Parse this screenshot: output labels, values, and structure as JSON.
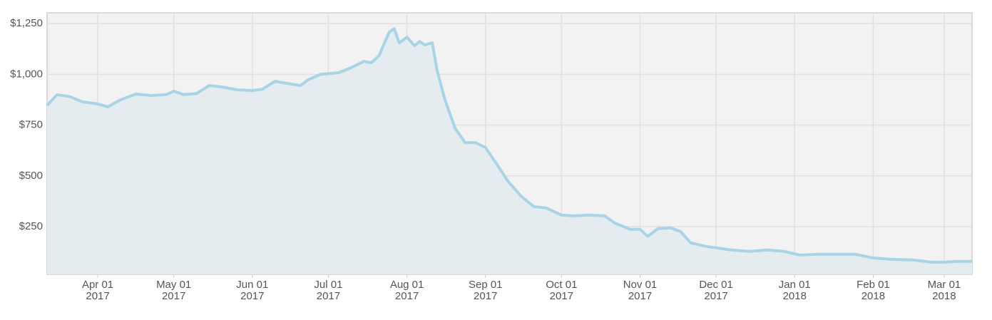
{
  "chart_data": {
    "type": "area",
    "color": "#a8d4e6",
    "fill": "#e4ecf0",
    "grid": true,
    "x": [
      "2017-03-12",
      "2017-03-16",
      "2017-03-21",
      "2017-03-26",
      "2017-04-01",
      "2017-04-05",
      "2017-04-10",
      "2017-04-16",
      "2017-04-22",
      "2017-04-28",
      "2017-05-01",
      "2017-05-05",
      "2017-05-10",
      "2017-05-15",
      "2017-05-20",
      "2017-05-26",
      "2017-06-01",
      "2017-06-05",
      "2017-06-10",
      "2017-06-15",
      "2017-06-20",
      "2017-06-23",
      "2017-06-28",
      "2017-07-05",
      "2017-07-10",
      "2017-07-15",
      "2017-07-18",
      "2017-07-21",
      "2017-07-25",
      "2017-07-27",
      "2017-07-29",
      "2017-08-01",
      "2017-08-04",
      "2017-08-06",
      "2017-08-08",
      "2017-08-11",
      "2017-08-13",
      "2017-08-16",
      "2017-08-20",
      "2017-08-24",
      "2017-08-28",
      "2017-09-01",
      "2017-09-05",
      "2017-09-10",
      "2017-09-15",
      "2017-09-20",
      "2017-09-25",
      "2017-10-01",
      "2017-10-06",
      "2017-10-12",
      "2017-10-18",
      "2017-10-22",
      "2017-10-28",
      "2017-11-01",
      "2017-11-04",
      "2017-11-08",
      "2017-11-13",
      "2017-11-17",
      "2017-11-21",
      "2017-11-27",
      "2017-12-01",
      "2017-12-07",
      "2017-12-14",
      "2017-12-21",
      "2017-12-28",
      "2018-01-03",
      "2018-01-10",
      "2018-01-18",
      "2018-01-25",
      "2018-02-01",
      "2018-02-08",
      "2018-02-17",
      "2018-02-24",
      "2018-03-01",
      "2018-03-06",
      "2018-03-12"
    ],
    "values": [
      847,
      900,
      890,
      865,
      854,
      840,
      875,
      903,
      896,
      900,
      917,
      900,
      906,
      945,
      938,
      924,
      920,
      927,
      966,
      955,
      945,
      973,
      1000,
      1008,
      1033,
      1064,
      1057,
      1092,
      1208,
      1225,
      1155,
      1183,
      1141,
      1162,
      1145,
      1155,
      1015,
      875,
      735,
      664,
      664,
      640,
      566,
      472,
      401,
      349,
      342,
      307,
      303,
      307,
      303,
      268,
      237,
      237,
      202,
      240,
      244,
      226,
      170,
      153,
      146,
      135,
      128,
      135,
      128,
      110,
      114,
      114,
      114,
      96,
      89,
      86,
      75,
      75,
      79,
      79
    ],
    "xlim": [
      "2017-03-12",
      "2018-03-12"
    ],
    "xticks": [
      {
        "value": "2017-04-01",
        "label": [
          "Apr 01",
          "2017"
        ]
      },
      {
        "value": "2017-05-01",
        "label": [
          "May 01",
          "2017"
        ]
      },
      {
        "value": "2017-06-01",
        "label": [
          "Jun 01",
          "2017"
        ]
      },
      {
        "value": "2017-07-01",
        "label": [
          "Jul 01",
          "2017"
        ]
      },
      {
        "value": "2017-08-01",
        "label": [
          "Aug 01",
          "2017"
        ]
      },
      {
        "value": "2017-09-01",
        "label": [
          "Sep 01",
          "2017"
        ]
      },
      {
        "value": "2017-10-01",
        "label": [
          "Oct 01",
          "2017"
        ]
      },
      {
        "value": "2017-11-01",
        "label": [
          "Nov 01",
          "2017"
        ]
      },
      {
        "value": "2017-12-01",
        "label": [
          "Dec 01",
          "2017"
        ]
      },
      {
        "value": "2018-01-01",
        "label": [
          "Jan 01",
          "2018"
        ]
      },
      {
        "value": "2018-02-01",
        "label": [
          "Feb 01",
          "2018"
        ]
      },
      {
        "value": "2018-03-01",
        "label": [
          "Mar 01",
          "2018"
        ]
      }
    ],
    "ylim": [
      15,
      1303
    ],
    "yticks": [
      {
        "value": 250,
        "label": "$250"
      },
      {
        "value": 500,
        "label": "$500"
      },
      {
        "value": 750,
        "label": "$750"
      },
      {
        "value": 1000,
        "label": "$1,000"
      },
      {
        "value": 1250,
        "label": "$1,250"
      }
    ]
  }
}
